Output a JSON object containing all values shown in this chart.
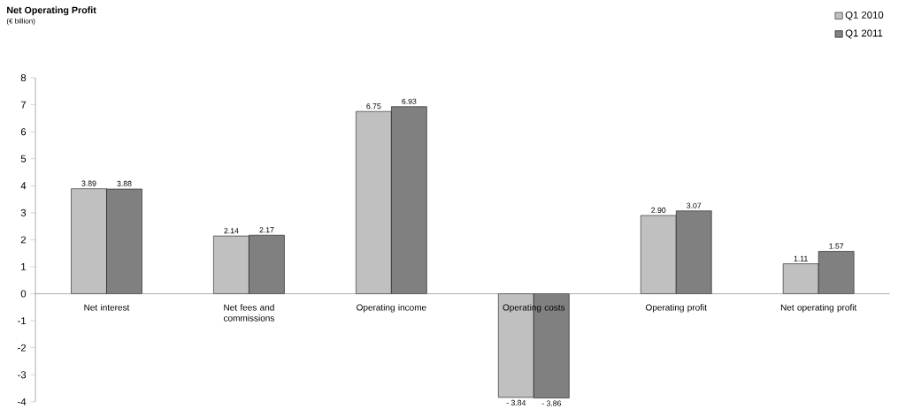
{
  "chart_data": {
    "type": "bar",
    "title": "Net Operating Profit",
    "subtitle": "(€ billion)",
    "categories": [
      "Net interest",
      "Net fees and commissions",
      "Operating income",
      "Operating costs",
      "Operating profit",
      "Net operating profit"
    ],
    "series": [
      {
        "name": "Q1 2010",
        "color": "#c0c0c0",
        "values": [
          3.89,
          2.14,
          6.75,
          -3.84,
          2.9,
          1.11
        ],
        "value_labels": [
          "3.89",
          "2.14",
          "6.75",
          "- 3.84",
          "2.90",
          "1.11"
        ]
      },
      {
        "name": "Q1 2011",
        "color": "#808080",
        "values": [
          3.88,
          2.17,
          6.93,
          -3.86,
          3.07,
          1.57
        ],
        "value_labels": [
          "3.88",
          "2.17",
          "6.93",
          "- 3.86",
          "3.07",
          "1.57"
        ]
      }
    ],
    "ylim": [
      -4,
      8
    ],
    "yticks": [
      -4,
      -3,
      -2,
      -1,
      0,
      1,
      2,
      3,
      4,
      5,
      6,
      7,
      8
    ],
    "grid": false,
    "legend": "top right"
  }
}
